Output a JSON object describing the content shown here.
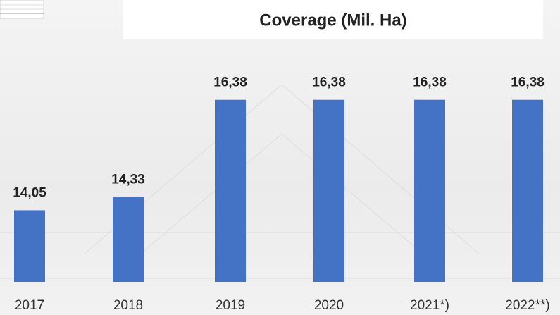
{
  "chart_data": {
    "type": "bar",
    "title": "Coverage (Mil. Ha)",
    "categories": [
      "2017",
      "2018",
      "2019",
      "2020",
      "2021*)",
      "2022**)"
    ],
    "values": [
      14.05,
      14.33,
      16.38,
      16.38,
      16.38,
      16.38
    ],
    "value_labels": [
      "14,05",
      "14,33",
      "16,38",
      "16,38",
      "16,38",
      "16,38"
    ],
    "color": "#4472c4",
    "ylim": [
      12.54,
      17
    ]
  }
}
